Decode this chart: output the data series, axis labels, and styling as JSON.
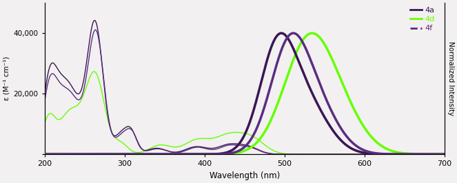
{
  "xlabel": "Wavelength (nm)",
  "ylabel_left": "ε (M⁻¹ cm⁻¹)",
  "ylabel_right": "Normalized Intensity",
  "xlim": [
    200,
    700
  ],
  "ylim_left": [
    0,
    50000
  ],
  "ylim_right": [
    0,
    1.25
  ],
  "yticks_left": [
    0,
    20000,
    40000
  ],
  "ytick_labels_left": [
    "",
    "20,000",
    "40,000"
  ],
  "color_4a": "#3a1654",
  "color_4d": "#66ff00",
  "color_4f": "#5a2d82",
  "background_color": "#f2f0f0",
  "legend_labels": [
    "4a",
    "4d",
    "4f"
  ],
  "lw_abs": 1.0,
  "lw_fl": 2.5
}
